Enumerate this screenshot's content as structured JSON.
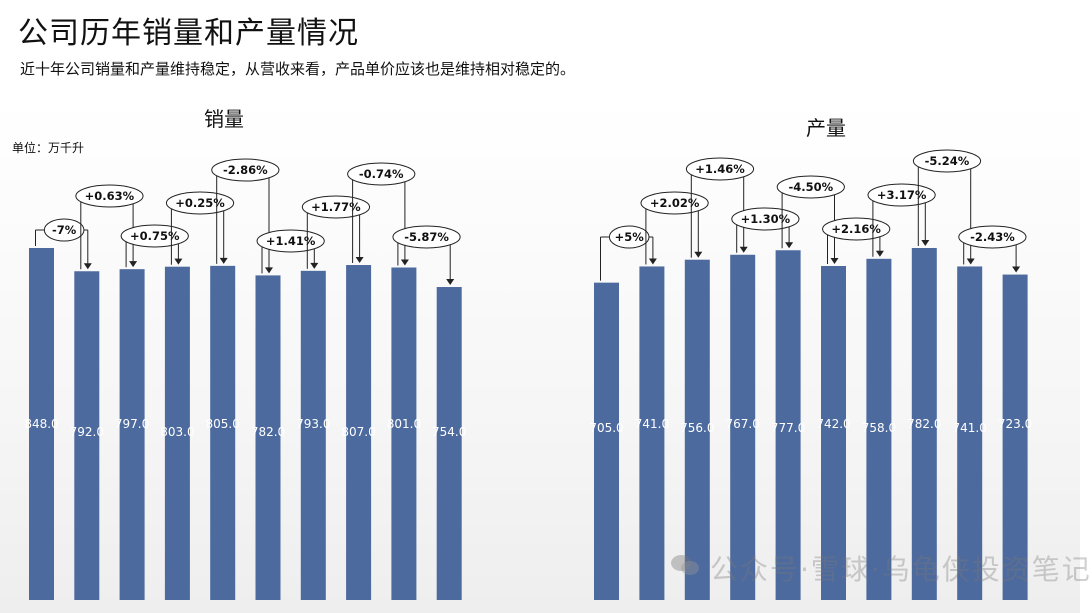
{
  "page": {
    "title": "公司历年销量和产量情况",
    "subtitle": "近十年公司销量和产量维持稳定，从营收来看，产品单价应该也是维持相对稳定的。"
  },
  "watermark": {
    "text": "公众号·雪球·乌龟侠投资笔记",
    "icon": "wechat-icon",
    "logo": "snowball-logo"
  },
  "colors": {
    "bar": "#4d6a9e",
    "bar_label": "#ffffff",
    "annotation_border": "#222222"
  },
  "chart_data": [
    {
      "type": "bar",
      "title": "销量",
      "unit_label": "单位：万千升",
      "categories": [
        "",
        "",
        "",
        "",
        "",
        "",
        "",
        "",
        "",
        ""
      ],
      "values": [
        848.0,
        792.0,
        797.0,
        803.0,
        805.0,
        782.0,
        793.0,
        807.0,
        801.0,
        754.0
      ],
      "value_labels": [
        "848.0",
        "792.0",
        "797.0",
        "803.0",
        "805.0",
        "782.0",
        "793.0",
        "807.0",
        "801.0",
        "754.0"
      ],
      "changes": [
        "-7%",
        "+0.63%",
        "+0.75%",
        "+0.25%",
        "-2.86%",
        "+1.41%",
        "+1.77%",
        "-0.74%",
        "-5.87%"
      ],
      "ylim": [
        0,
        848
      ],
      "grid": false,
      "legend": "none"
    },
    {
      "type": "bar",
      "title": "产量",
      "unit_label": "",
      "categories": [
        "",
        "",
        "",
        "",
        "",
        "",
        "",
        "",
        "",
        ""
      ],
      "values": [
        705.0,
        741.0,
        756.0,
        767.0,
        777.0,
        742.0,
        758.0,
        782.0,
        741.0,
        723.0
      ],
      "value_labels": [
        "705.0",
        "741.0",
        "756.0",
        "767.0",
        "777.0",
        "742.0",
        "758.0",
        "782.0",
        "741.0",
        "723.0"
      ],
      "changes": [
        "+5%",
        "+2.02%",
        "+1.46%",
        "+1.30%",
        "-4.50%",
        "+2.16%",
        "+3.17%",
        "-5.24%",
        "-2.43%"
      ],
      "ylim": [
        0,
        782
      ],
      "grid": false,
      "legend": "none"
    }
  ]
}
